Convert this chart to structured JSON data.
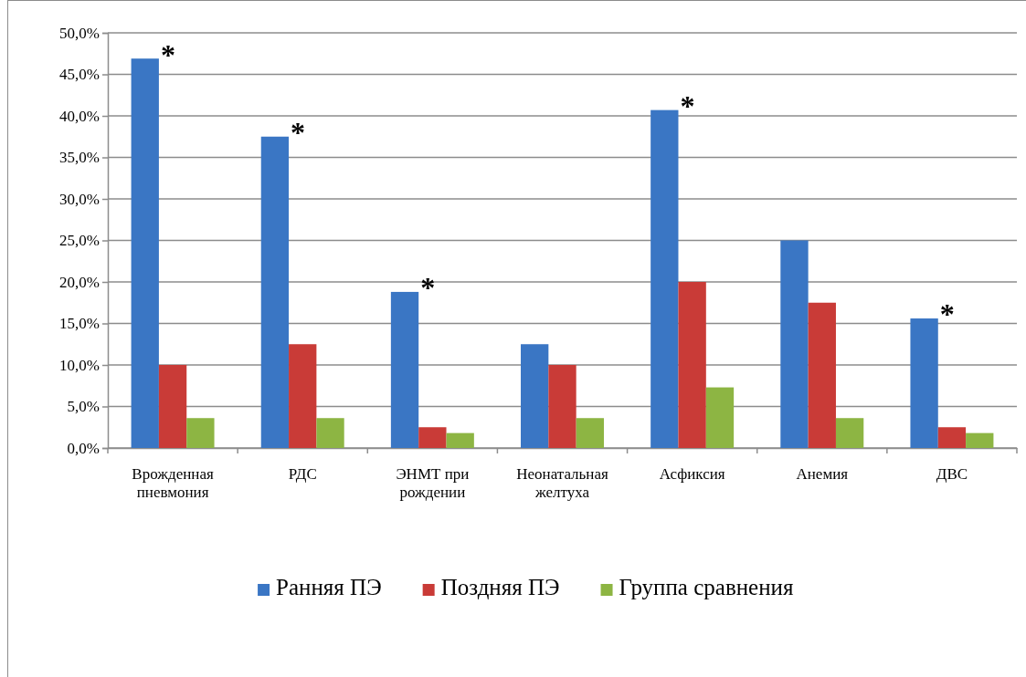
{
  "chart_data": {
    "type": "bar",
    "categories": [
      "Врожденная пневмония",
      "РДС",
      "ЭНМТ при рождении",
      "Неонатальная желтуха",
      "Асфиксия",
      "Анемия",
      "ДВС"
    ],
    "series": [
      {
        "name": "Ранняя ПЭ",
        "color": "#3a76c4",
        "values": [
          46.9,
          37.5,
          18.8,
          12.5,
          40.7,
          25.0,
          15.6
        ],
        "value_labels": [
          "*",
          "*",
          "*",
          null,
          "*",
          null,
          "*"
        ]
      },
      {
        "name": "Поздняя ПЭ",
        "color": "#c93b37",
        "values": [
          10.0,
          12.5,
          2.5,
          10.0,
          20.0,
          17.5,
          2.5
        ]
      },
      {
        "name": "Группа сравнения",
        "color": "#8db543",
        "values": [
          3.6,
          3.6,
          1.8,
          3.6,
          7.3,
          3.6,
          1.8
        ]
      }
    ],
    "ylim": [
      0,
      50
    ],
    "yticks": [
      {
        "value": 0,
        "label": "0,0%"
      },
      {
        "value": 5,
        "label": "5,0%"
      },
      {
        "value": 10,
        "label": "10,0%"
      },
      {
        "value": 15,
        "label": "15,0%"
      },
      {
        "value": 20,
        "label": "20,0%"
      },
      {
        "value": 25,
        "label": "25,0%"
      },
      {
        "value": 30,
        "label": "30,0%"
      },
      {
        "value": 35,
        "label": "35,0%"
      },
      {
        "value": 40,
        "label": "40,0%"
      },
      {
        "value": 45,
        "label": "45,0%"
      },
      {
        "value": 50,
        "label": "50,0%"
      }
    ],
    "grid": "y",
    "legend": "bottom"
  }
}
